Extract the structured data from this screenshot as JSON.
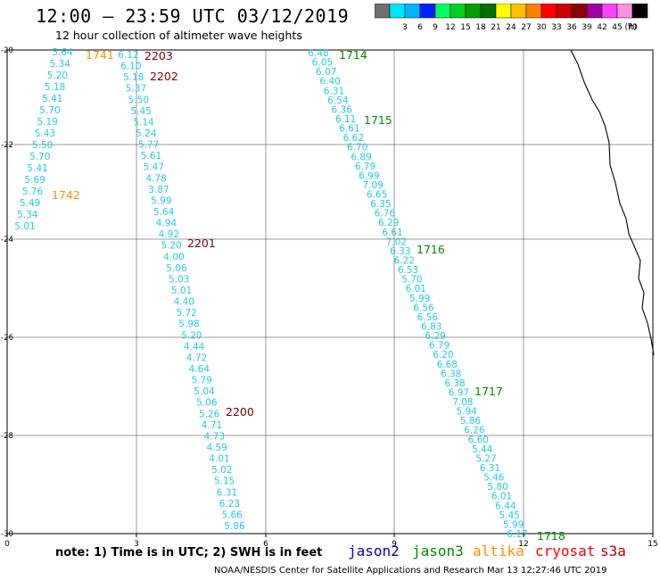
{
  "header": {
    "title": "12:00 – 23:59 UTC 03/12/2019",
    "subtitle": "12 hour collection of altimeter wave heights"
  },
  "legend_scale": {
    "unit": "(ft)",
    "bins": [
      {
        "color": "#707070",
        "label": ""
      },
      {
        "color": "#00e5ff",
        "label": "3"
      },
      {
        "color": "#00b4ff",
        "label": "6"
      },
      {
        "color": "#0020ff",
        "label": "9"
      },
      {
        "color": "#00ff60",
        "label": "12"
      },
      {
        "color": "#00d020",
        "label": "15"
      },
      {
        "color": "#00a000",
        "label": "18"
      },
      {
        "color": "#007000",
        "label": "21"
      },
      {
        "color": "#ffff00",
        "label": "24"
      },
      {
        "color": "#ffc000",
        "label": "27"
      },
      {
        "color": "#ff8000",
        "label": "30"
      },
      {
        "color": "#ff0000",
        "label": "33"
      },
      {
        "color": "#d00000",
        "label": "36"
      },
      {
        "color": "#900000",
        "label": "39"
      },
      {
        "color": "#a000a0",
        "label": "42"
      },
      {
        "color": "#ff40ff",
        "label": "45"
      },
      {
        "color": "#ff90e0",
        "label": "70"
      },
      {
        "color": "#000000",
        "label": ""
      }
    ]
  },
  "axes": {
    "x_ticks": [
      "0",
      "3",
      "6",
      "9",
      "12",
      "15"
    ],
    "y_ticks": [
      "-20",
      "-22",
      "-24",
      "-26",
      "-28",
      "-30"
    ]
  },
  "track_colors": {
    "value": "#22c8e8",
    "jason3": "#008800",
    "altika": "#ff8c00",
    "s3a": "#7a0000"
  },
  "tracks": [
    {
      "name": "track-altika-west",
      "values": [
        "5.64",
        "5.34",
        "5.20",
        "5.18",
        "5.41",
        "5.70",
        "5.19",
        "5.43",
        "5.50",
        "5.70",
        "5.41",
        "5.69",
        "5.76",
        "5.49",
        "5.34",
        "5.01"
      ],
      "time_labels": [
        {
          "text": "1741",
          "index": 0,
          "sat": "altika"
        },
        {
          "text": "1742",
          "index": 12,
          "sat": "altika"
        }
      ]
    },
    {
      "name": "track-s3a",
      "values": [
        "6.12",
        "6.10",
        "5.18",
        "5.37",
        "5.50",
        "5.45",
        "5.14",
        "5.24",
        "5.77",
        "5.61",
        "5.47",
        "4.78",
        "3.87",
        "5.99",
        "5.64",
        "4.94",
        "4.92",
        "5.20",
        "4.00",
        "5.06",
        "5.03",
        "5.01",
        "4.40",
        "5.72",
        "5.98",
        "5.20",
        "4.44",
        "4.72",
        "4.64",
        "5.79",
        "5.04",
        "5.06",
        "5.26",
        "4.71",
        "4.73",
        "4.59",
        "4.01",
        "5.02",
        "5.15",
        "6.31",
        "6.23",
        "5.66",
        "5.86"
      ],
      "time_labels": [
        {
          "text": "2203",
          "index": 0,
          "sat": "s3a"
        },
        {
          "text": "2202",
          "index": 2,
          "sat": "s3a"
        },
        {
          "text": "2201",
          "index": 17,
          "sat": "s3a"
        },
        {
          "text": "2200",
          "index": 32,
          "sat": "s3a"
        }
      ]
    },
    {
      "name": "track-jason3",
      "values": [
        "6.48",
        "6.05",
        "6.07",
        "6.40",
        "6.31",
        "6.54",
        "6.36",
        "6.11",
        "6.61",
        "6.62",
        "6.70",
        "6.89",
        "6.79",
        "6.99",
        "7.09",
        "6.65",
        "6.35",
        "6.76",
        "6.29",
        "6.61",
        "7.02",
        "6.33",
        "6.22",
        "6.53",
        "5.70",
        "6.01",
        "5.99",
        "6.56",
        "6.56",
        "6.83",
        "6.29",
        "6.79",
        "6.20",
        "6.68",
        "6.38",
        "6.38",
        "6.97",
        "7.08",
        "5.94",
        "5.86",
        "6.26",
        "6.60",
        "5.44",
        "5.27",
        "6.31",
        "5.46",
        "5.80",
        "6.01",
        "6.44",
        "5.45",
        "5.99",
        "6.17"
      ],
      "time_labels": [
        {
          "text": "1714",
          "index": 0,
          "sat": "jason3"
        },
        {
          "text": "1715",
          "index": 7,
          "sat": "jason3"
        },
        {
          "text": "1716",
          "index": 21,
          "sat": "jason3"
        },
        {
          "text": "1717",
          "index": 36,
          "sat": "jason3"
        },
        {
          "text": "1718",
          "index": 51,
          "sat": "jason3"
        }
      ]
    }
  ],
  "footer": {
    "note": "note:  1) Time is in UTC;  2) SWH is in feet",
    "satellites": [
      {
        "label": "jason2",
        "color": "#0000cc"
      },
      {
        "label": "jason3",
        "color": "#008800"
      },
      {
        "label": "altika",
        "color": "#ff8c00"
      },
      {
        "label": "cryosat",
        "color": "#ff0000"
      },
      {
        "label": "s3a",
        "color": "#aa0000"
      }
    ],
    "credit": "NOAA/NESDIS Center for Satellite Applications and Research    Mar 13 12:27:46 UTC 2019"
  }
}
